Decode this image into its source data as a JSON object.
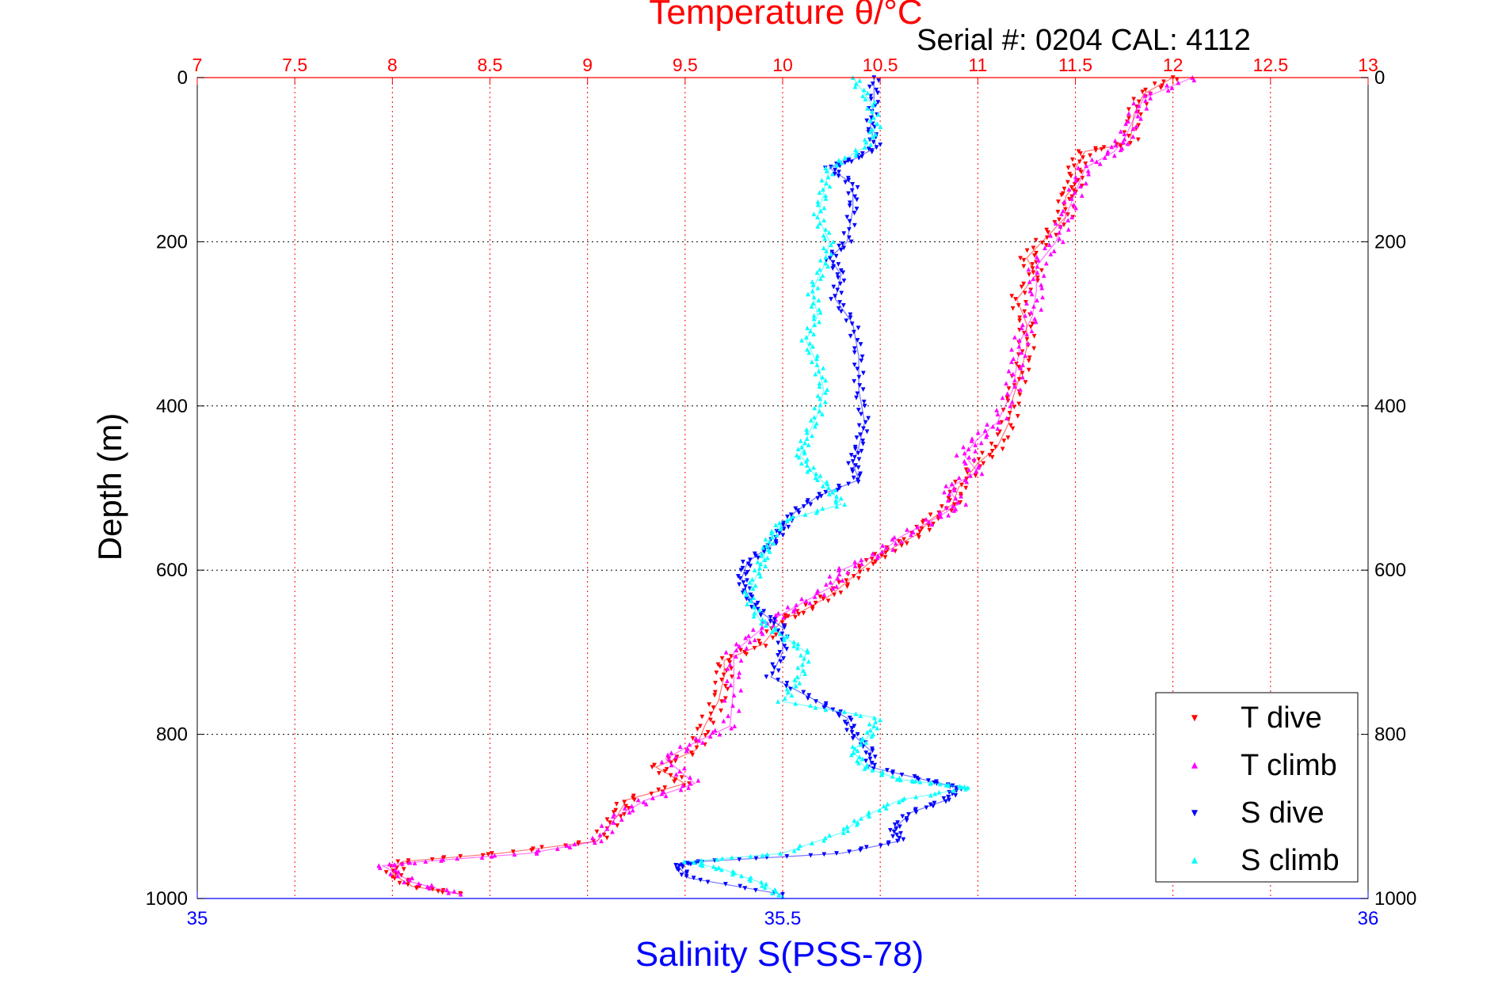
{
  "header": {
    "top_title": "Temperature θ/°C",
    "subtitle": "Serial #: 0204  CAL: 4112"
  },
  "axes": {
    "left_label": "Depth (m)",
    "bottom_label": "Salinity S(PSS-78)"
  },
  "legend": {
    "items": [
      {
        "label": "T dive",
        "color": "#ff0000",
        "symbol": "down-triangle"
      },
      {
        "label": "T climb",
        "color": "#ff00ff",
        "symbol": "up-triangle"
      },
      {
        "label": "S dive",
        "color": "#0000ff",
        "symbol": "down-triangle"
      },
      {
        "label": "S climb",
        "color": "#00ffff",
        "symbol": "up-triangle"
      }
    ]
  },
  "colors": {
    "temperature_axis": "#ff0000",
    "salinity_axis": "#0000ff",
    "depth_axis": "#000000",
    "grid_x": "#ff0000",
    "grid_y": "#000000"
  },
  "chart_data": {
    "type": "scatter",
    "title": "Temperature θ/°C",
    "subtitle": "Serial #: 0204  CAL: 4112",
    "x_top": {
      "label": "Temperature θ/°C",
      "lim": [
        7,
        13
      ],
      "ticks": [
        7,
        7.5,
        8,
        8.5,
        9,
        9.5,
        10,
        10.5,
        11,
        11.5,
        12,
        12.5,
        13
      ],
      "tick_labels": [
        "7",
        "7.5",
        "8",
        "8.5",
        "9",
        "9.5",
        "10",
        "10.5",
        "11",
        "11.5",
        "12",
        "12.5",
        "13"
      ],
      "grid": true,
      "color": "#ff0000"
    },
    "x_bottom": {
      "label": "Salinity S(PSS-78)",
      "lim": [
        35,
        36
      ],
      "ticks": [
        35,
        35.5,
        36
      ],
      "tick_labels": [
        "35",
        "35.5",
        "36"
      ],
      "grid": false,
      "color": "#0000ff"
    },
    "y": {
      "label": "Depth (m)",
      "lim": [
        0,
        1000
      ],
      "reversed": true,
      "ticks": [
        0,
        200,
        400,
        600,
        800,
        1000
      ],
      "tick_labels_left": [
        "0",
        "200",
        "400",
        "600",
        "800",
        "1000"
      ],
      "tick_labels_right": [
        "0",
        "200",
        "400",
        "600",
        "800",
        "1000"
      ],
      "grid": true
    },
    "legend_position": "bottom-right",
    "series": [
      {
        "name": "T dive",
        "axis": "temperature",
        "marker": "down-triangle",
        "color": "#ff0000",
        "points": [
          [
            12.0,
            0
          ],
          [
            11.85,
            20
          ],
          [
            11.8,
            45
          ],
          [
            11.78,
            80
          ],
          [
            11.55,
            90
          ],
          [
            11.5,
            110
          ],
          [
            11.5,
            130
          ],
          [
            11.45,
            145
          ],
          [
            11.45,
            170
          ],
          [
            11.35,
            195
          ],
          [
            11.25,
            220
          ],
          [
            11.3,
            240
          ],
          [
            11.2,
            270
          ],
          [
            11.25,
            300
          ],
          [
            11.25,
            330
          ],
          [
            11.22,
            360
          ],
          [
            11.18,
            390
          ],
          [
            11.16,
            420
          ],
          [
            11.1,
            450
          ],
          [
            11.0,
            470
          ],
          [
            10.9,
            500
          ],
          [
            10.87,
            520
          ],
          [
            10.75,
            540
          ],
          [
            10.7,
            555
          ],
          [
            10.55,
            575
          ],
          [
            10.45,
            590
          ],
          [
            10.35,
            610
          ],
          [
            10.25,
            630
          ],
          [
            10.1,
            650
          ],
          [
            10.0,
            660
          ],
          [
            9.9,
            690
          ],
          [
            9.7,
            710
          ],
          [
            9.7,
            730
          ],
          [
            9.67,
            760
          ],
          [
            9.6,
            790
          ],
          [
            9.55,
            820
          ],
          [
            9.35,
            840
          ],
          [
            9.5,
            860
          ],
          [
            9.2,
            880
          ],
          [
            9.15,
            900
          ],
          [
            9.05,
            930
          ],
          [
            8.55,
            945
          ],
          [
            8.05,
            955
          ],
          [
            8.0,
            970
          ],
          [
            8.1,
            985
          ],
          [
            8.35,
            995
          ]
        ]
      },
      {
        "name": "T climb",
        "axis": "temperature",
        "marker": "up-triangle",
        "color": "#ff00ff",
        "points": [
          [
            12.1,
            0
          ],
          [
            11.85,
            25
          ],
          [
            11.8,
            50
          ],
          [
            11.75,
            75
          ],
          [
            11.7,
            90
          ],
          [
            11.55,
            110
          ],
          [
            11.5,
            140
          ],
          [
            11.45,
            170
          ],
          [
            11.4,
            200
          ],
          [
            11.3,
            230
          ],
          [
            11.3,
            260
          ],
          [
            11.28,
            290
          ],
          [
            11.22,
            320
          ],
          [
            11.2,
            350
          ],
          [
            11.18,
            380
          ],
          [
            11.1,
            420
          ],
          [
            11.0,
            440
          ],
          [
            10.93,
            460
          ],
          [
            11.0,
            480
          ],
          [
            10.85,
            500
          ],
          [
            10.9,
            520
          ],
          [
            10.8,
            535
          ],
          [
            10.6,
            560
          ],
          [
            10.5,
            580
          ],
          [
            10.3,
            600
          ],
          [
            10.25,
            620
          ],
          [
            10.1,
            640
          ],
          [
            9.95,
            660
          ],
          [
            9.85,
            680
          ],
          [
            9.75,
            700
          ],
          [
            9.75,
            740
          ],
          [
            9.73,
            790
          ],
          [
            9.55,
            810
          ],
          [
            9.4,
            830
          ],
          [
            9.55,
            860
          ],
          [
            9.3,
            880
          ],
          [
            9.15,
            900
          ],
          [
            9.05,
            930
          ],
          [
            8.7,
            945
          ],
          [
            8.15,
            955
          ],
          [
            7.95,
            960
          ],
          [
            8.1,
            980
          ],
          [
            8.35,
            995
          ]
        ]
      },
      {
        "name": "S dive",
        "axis": "salinity",
        "marker": "down-triangle",
        "color": "#0000ff",
        "points": [
          [
            35.578,
            0
          ],
          [
            35.578,
            30
          ],
          [
            35.575,
            60
          ],
          [
            35.58,
            85
          ],
          [
            35.56,
            100
          ],
          [
            35.54,
            110
          ],
          [
            35.56,
            130
          ],
          [
            35.56,
            160
          ],
          [
            35.555,
            200
          ],
          [
            35.54,
            220
          ],
          [
            35.55,
            240
          ],
          [
            35.545,
            270
          ],
          [
            35.56,
            300
          ],
          [
            35.565,
            340
          ],
          [
            35.565,
            380
          ],
          [
            35.57,
            420
          ],
          [
            35.565,
            450
          ],
          [
            35.56,
            470
          ],
          [
            35.565,
            490
          ],
          [
            35.53,
            510
          ],
          [
            35.51,
            530
          ],
          [
            35.5,
            550
          ],
          [
            35.49,
            570
          ],
          [
            35.47,
            590
          ],
          [
            35.465,
            610
          ],
          [
            35.47,
            630
          ],
          [
            35.48,
            650
          ],
          [
            35.5,
            670
          ],
          [
            35.5,
            700
          ],
          [
            35.49,
            730
          ],
          [
            35.53,
            760
          ],
          [
            35.555,
            780
          ],
          [
            35.56,
            800
          ],
          [
            35.575,
            820
          ],
          [
            35.575,
            840
          ],
          [
            35.62,
            855
          ],
          [
            35.65,
            865
          ],
          [
            35.64,
            880
          ],
          [
            35.61,
            895
          ],
          [
            35.595,
            915
          ],
          [
            35.6,
            930
          ],
          [
            35.55,
            945
          ],
          [
            35.43,
            955
          ],
          [
            35.41,
            960
          ],
          [
            35.42,
            975
          ],
          [
            35.5,
            995
          ]
        ]
      },
      {
        "name": "S climb",
        "axis": "salinity",
        "marker": "up-triangle",
        "color": "#00ffff",
        "points": [
          [
            35.56,
            0
          ],
          [
            35.575,
            30
          ],
          [
            35.58,
            60
          ],
          [
            35.57,
            85
          ],
          [
            35.54,
            110
          ],
          [
            35.535,
            140
          ],
          [
            35.53,
            170
          ],
          [
            35.54,
            200
          ],
          [
            35.535,
            230
          ],
          [
            35.525,
            260
          ],
          [
            35.53,
            290
          ],
          [
            35.52,
            320
          ],
          [
            35.53,
            350
          ],
          [
            35.535,
            380
          ],
          [
            35.53,
            410
          ],
          [
            35.52,
            440
          ],
          [
            35.515,
            460
          ],
          [
            35.525,
            480
          ],
          [
            35.54,
            500
          ],
          [
            35.55,
            520
          ],
          [
            35.5,
            540
          ],
          [
            35.49,
            560
          ],
          [
            35.485,
            580
          ],
          [
            35.48,
            600
          ],
          [
            35.47,
            630
          ],
          [
            35.48,
            660
          ],
          [
            35.5,
            680
          ],
          [
            35.52,
            700
          ],
          [
            35.515,
            730
          ],
          [
            35.5,
            760
          ],
          [
            35.58,
            780
          ],
          [
            35.575,
            800
          ],
          [
            35.56,
            820
          ],
          [
            35.57,
            840
          ],
          [
            35.6,
            855
          ],
          [
            35.63,
            860
          ],
          [
            35.66,
            865
          ],
          [
            35.6,
            880
          ],
          [
            35.57,
            900
          ],
          [
            35.55,
            920
          ],
          [
            35.5,
            945
          ],
          [
            35.42,
            955
          ],
          [
            35.45,
            965
          ],
          [
            35.48,
            980
          ],
          [
            35.5,
            998
          ]
        ]
      }
    ]
  }
}
